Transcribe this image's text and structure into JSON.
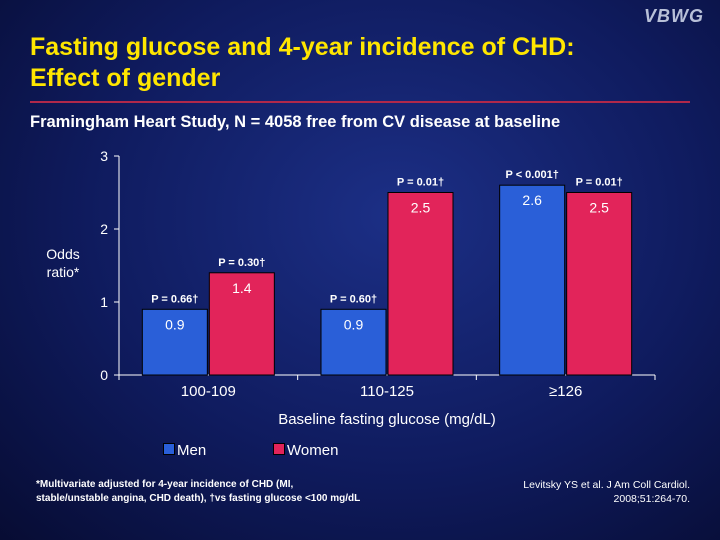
{
  "logo": "VBWG",
  "title_line1": "Fasting glucose and 4-year incidence of CHD:",
  "title_line2": "Effect of gender",
  "subtitle": "Framingham Heart Study, N = 4058 free from CV disease at baseline",
  "colors": {
    "men": "#2a5fd8",
    "women": "#e2245a",
    "title": "#ffe600",
    "rule": "#b0284a"
  },
  "chart_data": {
    "type": "bar",
    "categories": [
      "100-109",
      "110-125",
      "≥126"
    ],
    "series": [
      {
        "name": "Men",
        "values": [
          0.9,
          0.9,
          2.6
        ],
        "labels": [
          "0.9",
          "0.9",
          "2.6"
        ],
        "p_values": [
          "P = 0.66†",
          "P = 0.60†",
          "P < 0.001†"
        ]
      },
      {
        "name": "Women",
        "values": [
          1.4,
          2.5,
          2.5
        ],
        "labels": [
          "1.4",
          "2.5",
          "2.5"
        ],
        "p_values": [
          "P = 0.30†",
          "P = 0.01†",
          "P = 0.01†"
        ]
      }
    ],
    "ylabel_line1": "Odds",
    "ylabel_line2": "ratio*",
    "xlabel": "Baseline fasting glucose (mg/dL)",
    "ylim": [
      0,
      3
    ],
    "yticks": [
      "0",
      "1",
      "2",
      "3"
    ],
    "grid": false,
    "legend": "bottom-left"
  },
  "footnote_line1": "*Multivariate adjusted for 4-year incidence of CHD (MI,",
  "footnote_line2": "stable/unstable angina, CHD death), †vs fasting glucose <100 mg/dL",
  "citation_line1": "Levitsky YS et al. J Am Coll Cardiol.",
  "citation_line2": "2008;51:264-70."
}
